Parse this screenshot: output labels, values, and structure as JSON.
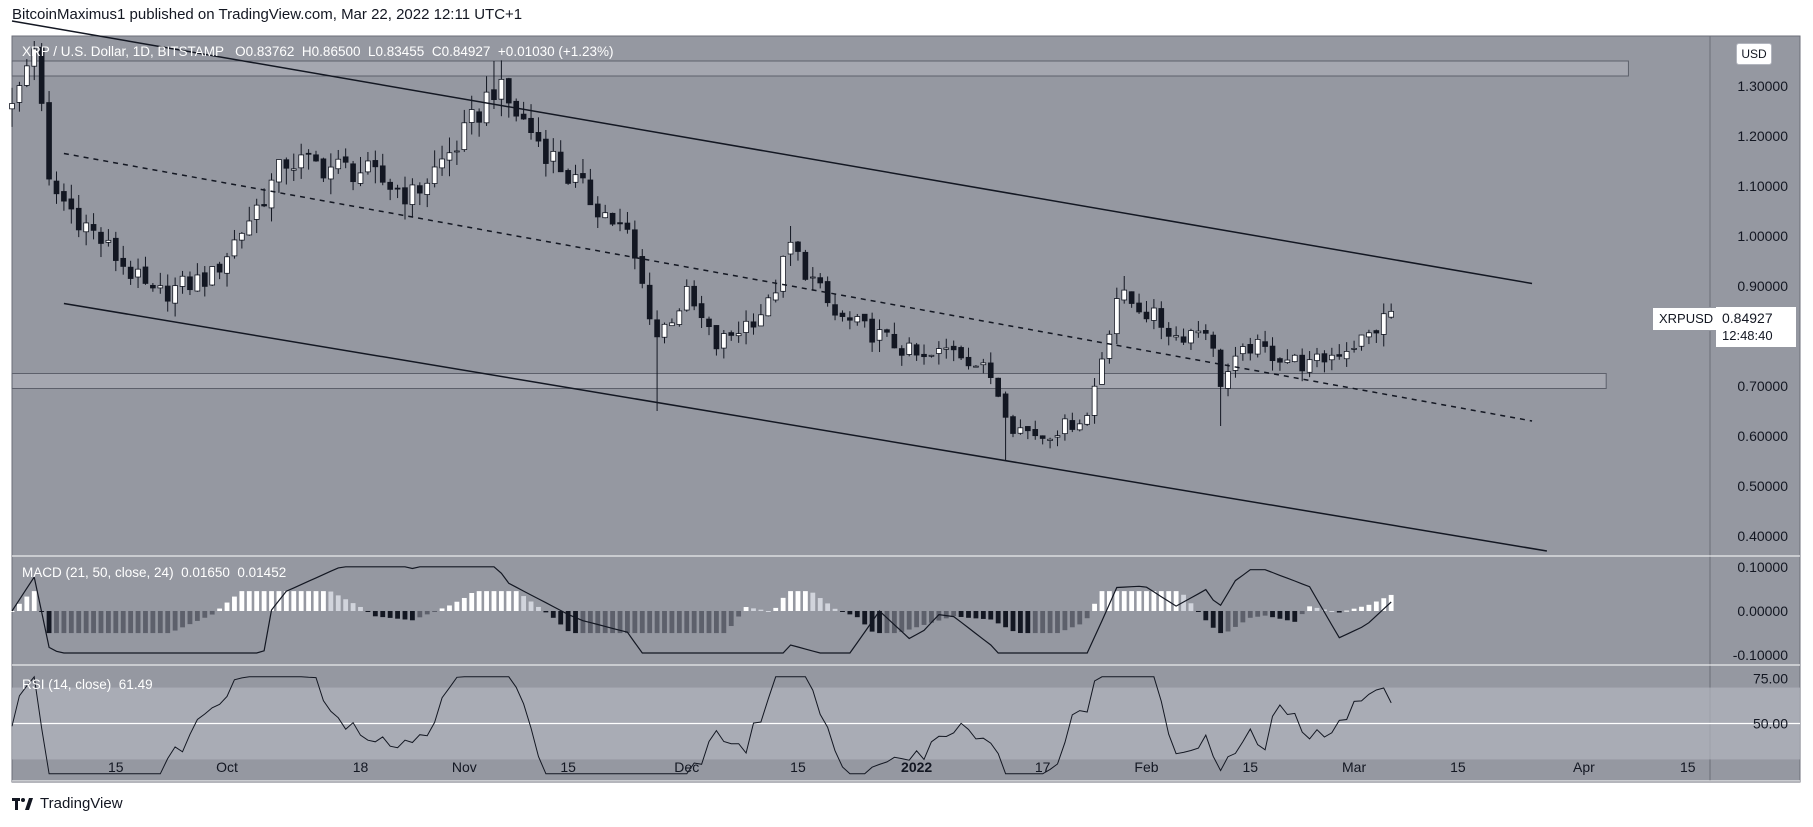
{
  "header": {
    "text": "BitcoinMaximus1 published on TradingView.com, Mar 22, 2022 12:11 UTC+1"
  },
  "footer": {
    "brand": "TradingView"
  },
  "legend": {
    "main": {
      "symbol": "XRP / U.S. Dollar, 1D, BITSTAMP",
      "o_label": "O",
      "o": "0.83762",
      "h_label": "H",
      "h": "0.86500",
      "l_label": "L",
      "l": "0.83455",
      "c_label": "C",
      "c": "0.84927",
      "change": "+0.01030 (+1.23%)"
    },
    "macd": {
      "label": "MACD (21, 50, close, 24)",
      "v1": "0.01650",
      "v2": "0.01452"
    },
    "rsi": {
      "label": "RSI (14, close)",
      "v": "61.49"
    }
  },
  "price_scale": {
    "currency": "USD"
  },
  "last_price": {
    "symbol": "XRPUSD",
    "value": "0.84927",
    "countdown": "12:48:40"
  },
  "colors": {
    "background": "#9598a1",
    "plot_bg": "#9a9da6",
    "candle_up": "#ffffff",
    "candle_down": "#131722",
    "line": "#131722",
    "zone": "#b2b5be",
    "macd_up_strong": "#ffffff",
    "macd_up_weak": "#d1d4dc",
    "macd_down_strong": "#131722",
    "macd_down_weak": "#5d606b",
    "rsi_band": "#b2b5be"
  },
  "chart_data": [
    {
      "type": "candlestick",
      "title": "XRP / U.S. Dollar, 1D, BITSTAMP",
      "y_ticks": [
        "1.30000",
        "1.20000",
        "1.10000",
        "1.00000",
        "0.90000",
        "0.70000",
        "0.60000",
        "0.50000",
        "0.40000"
      ],
      "y_tick_values": [
        1.3,
        1.2,
        1.1,
        1.0,
        0.9,
        0.7,
        0.6,
        0.5,
        0.4
      ],
      "ylim": [
        0.36,
        1.4
      ],
      "x_ticks": [
        "15",
        "Oct",
        "18",
        "Nov",
        "15",
        "Dec",
        "15",
        "2022",
        "17",
        "Feb",
        "15",
        "Mar",
        "15",
        "Apr",
        "15"
      ],
      "x_tick_days": [
        15,
        30,
        48,
        62,
        76,
        92,
        107,
        123,
        140,
        154,
        168,
        182,
        196,
        213,
        227
      ],
      "date_axis": "2021-09-01 (day 1) to 2022-04-16 (day 227)",
      "horizontal_zones": [
        [
          1.32,
          1.35
        ],
        [
          0.695,
          0.725
        ]
      ],
      "channel_upper": [
        [
          1,
          1.43
        ],
        [
          206,
          0.905
        ]
      ],
      "channel_lower": [
        [
          8,
          0.865
        ],
        [
          208,
          0.37
        ]
      ],
      "channel_mid_dashed": [
        [
          8,
          1.165
        ],
        [
          206,
          0.63
        ]
      ],
      "key_points": [
        {
          "day": 4,
          "high": 1.39
        },
        {
          "day": 20,
          "low": 0.87
        },
        {
          "day": 66,
          "high": 1.35
        },
        {
          "day": 88,
          "low": 0.65
        },
        {
          "day": 106,
          "high": 1.02
        },
        {
          "day": 135,
          "low": 0.55
        },
        {
          "day": 151,
          "high": 0.92
        },
        {
          "day": 164,
          "low": 0.62
        },
        {
          "day": 187,
          "close": 0.84927
        }
      ]
    },
    {
      "type": "bar",
      "title": "MACD (21, 50, close, 24)",
      "y_ticks": [
        "0.10000",
        "0.00000",
        "-0.10000"
      ],
      "y_tick_values": [
        0.1,
        0.0,
        -0.1
      ],
      "ylim": [
        -0.12,
        0.12
      ],
      "values_last": [
        0.0165,
        0.01452
      ]
    },
    {
      "type": "line",
      "title": "RSI (14, close)",
      "y_ticks": [
        "75.00",
        "50.00"
      ],
      "y_tick_values": [
        75,
        50
      ],
      "ylim": [
        18,
        82
      ],
      "band": [
        30,
        70
      ],
      "value_last": 61.49
    }
  ]
}
